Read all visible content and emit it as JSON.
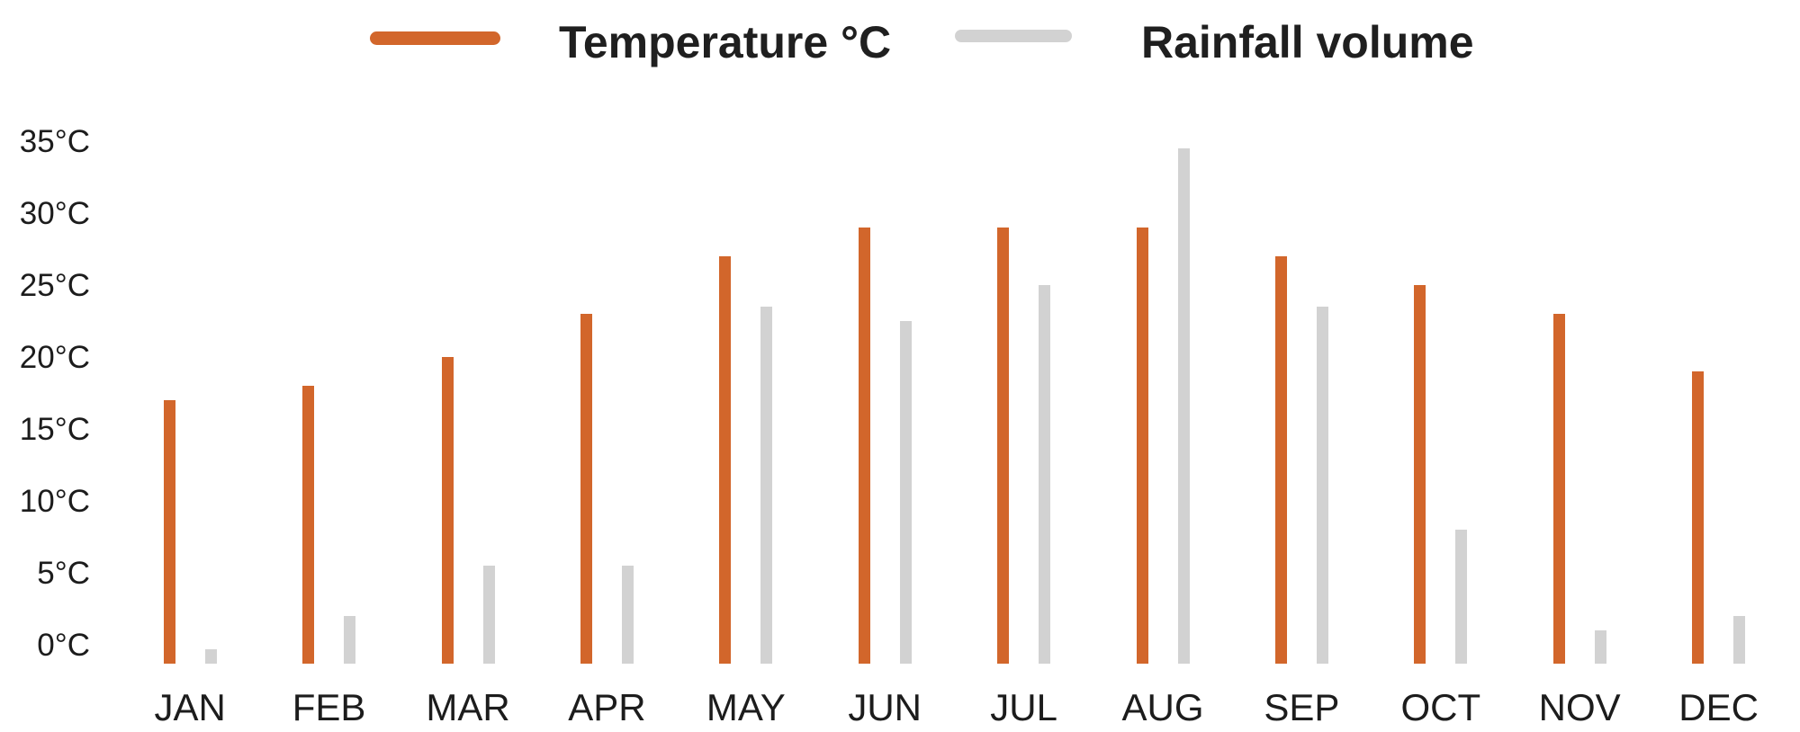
{
  "legend": {
    "temperature_label": "Temperature °C",
    "rainfall_label": "Rainfall volume"
  },
  "colors": {
    "temperature": "#D2662B",
    "rainfall": "#D2D2D2",
    "legend_text": "#1F1F1F",
    "axis_text": "#1C1C1C",
    "background": "#FFFFFF"
  },
  "chart_data": {
    "type": "bar",
    "title": "",
    "categories": [
      "JAN",
      "FEB",
      "MAR",
      "APR",
      "MAY",
      "JUN",
      "JUL",
      "AUG",
      "SEP",
      "OCT",
      "NOV",
      "DEC"
    ],
    "series": [
      {
        "name": "Temperature °C",
        "color": "#D2662B",
        "values": [
          17,
          18,
          20,
          23,
          27,
          29,
          29,
          29,
          27,
          25,
          23,
          19
        ]
      },
      {
        "name": "Rainfall volume",
        "color": "#D2D2D2",
        "values": [
          0.5,
          2,
          5.5,
          5.5,
          23.5,
          22.5,
          25,
          34.5,
          23.5,
          8,
          1,
          2
        ]
      }
    ],
    "y_axis": {
      "unit": "°C",
      "min": 0,
      "max": 35,
      "step": 5,
      "tick_labels": [
        "0°C",
        "5°C",
        "10°C",
        "15°C",
        "20°C",
        "25°C",
        "30°C",
        "35°C"
      ]
    },
    "grid": false,
    "legend_position": "top"
  }
}
